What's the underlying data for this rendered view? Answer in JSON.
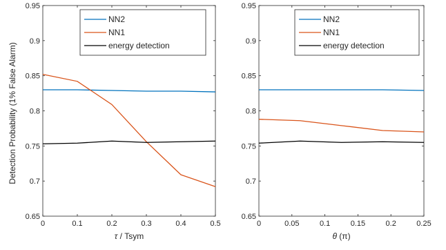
{
  "figure": {
    "ylabel": "Detection Probability (1% False Alarm)"
  },
  "chart_data": [
    {
      "type": "line",
      "xlabel_symbol": "τ",
      "xlabel_rest": " / Tsym",
      "xlim": [
        0,
        0.5
      ],
      "ylim": [
        0.65,
        0.95
      ],
      "xticks": [
        "0",
        "0.1",
        "0.2",
        "0.3",
        "0.4",
        "0.5"
      ],
      "xtick_values": [
        0,
        0.1,
        0.2,
        0.3,
        0.4,
        0.5
      ],
      "yticks": [
        "0.65",
        "0.7",
        "0.75",
        "0.8",
        "0.85",
        "0.9",
        "0.95"
      ],
      "ytick_values": [
        0.65,
        0.7,
        0.75,
        0.8,
        0.85,
        0.9,
        0.95
      ],
      "grid": false,
      "legend_position": "top-right",
      "series": [
        {
          "name": "NN2",
          "color": "#0072BD",
          "x": [
            0,
            0.1,
            0.2,
            0.3,
            0.4,
            0.5
          ],
          "y": [
            0.83,
            0.83,
            0.829,
            0.828,
            0.828,
            0.827
          ]
        },
        {
          "name": "NN1",
          "color": "#D95319",
          "x": [
            0,
            0.1,
            0.2,
            0.3,
            0.4,
            0.5
          ],
          "y": [
            0.852,
            0.842,
            0.809,
            0.756,
            0.709,
            0.692
          ]
        },
        {
          "name": "energy detection",
          "color": "#000000",
          "x": [
            0,
            0.1,
            0.2,
            0.3,
            0.4,
            0.5
          ],
          "y": [
            0.753,
            0.754,
            0.757,
            0.755,
            0.756,
            0.757
          ]
        }
      ]
    },
    {
      "type": "line",
      "xlabel_symbol": "θ",
      "xlabel_rest": " (π)",
      "xlim": [
        0,
        0.25
      ],
      "ylim": [
        0.65,
        0.95
      ],
      "xticks": [
        "0",
        "0.05",
        "0.1",
        "0.15",
        "0.2",
        "0.25"
      ],
      "xtick_values": [
        0,
        0.05,
        0.1,
        0.15,
        0.2,
        0.25
      ],
      "yticks": [
        "0.65",
        "0.7",
        "0.75",
        "0.8",
        "0.85",
        "0.9",
        "0.95"
      ],
      "ytick_values": [
        0.65,
        0.7,
        0.75,
        0.8,
        0.85,
        0.9,
        0.95
      ],
      "grid": false,
      "legend_position": "top-right",
      "series": [
        {
          "name": "NN2",
          "color": "#0072BD",
          "x": [
            0,
            0.0625,
            0.125,
            0.1875,
            0.25
          ],
          "y": [
            0.83,
            0.83,
            0.83,
            0.83,
            0.829
          ]
        },
        {
          "name": "NN1",
          "color": "#D95319",
          "x": [
            0,
            0.0625,
            0.125,
            0.1875,
            0.25
          ],
          "y": [
            0.788,
            0.786,
            0.779,
            0.772,
            0.77
          ]
        },
        {
          "name": "energy detection",
          "color": "#000000",
          "x": [
            0,
            0.0625,
            0.125,
            0.1875,
            0.25
          ],
          "y": [
            0.754,
            0.757,
            0.755,
            0.756,
            0.755
          ]
        }
      ]
    }
  ]
}
